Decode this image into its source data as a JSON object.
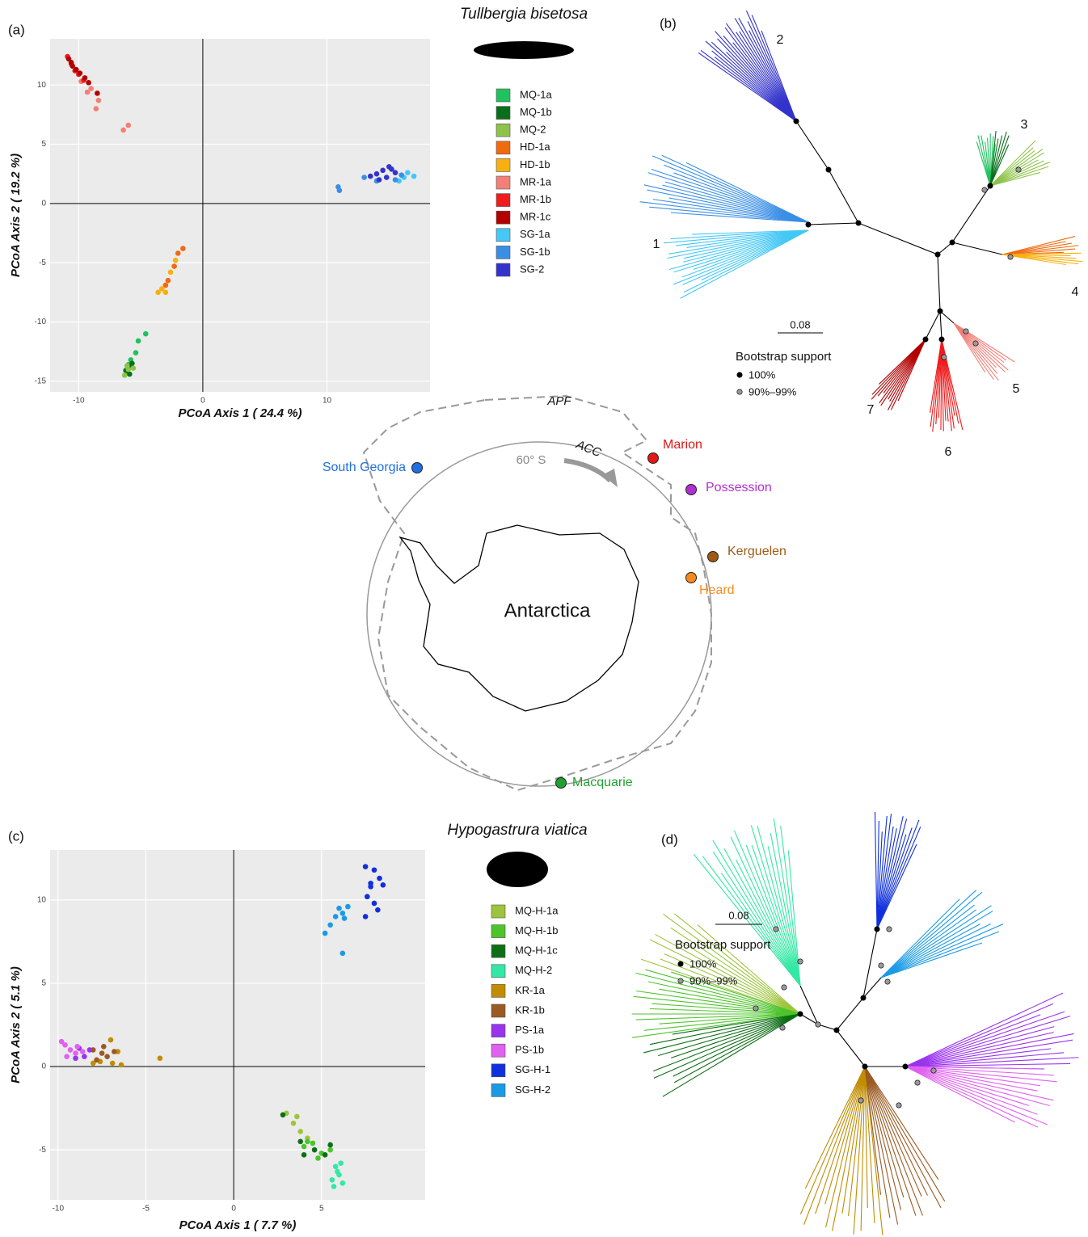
{
  "chart_data": [
    {
      "type": "scatter",
      "panel": "(a)",
      "species": "Tullbergia bisetosa",
      "xlabel": "PCoA Axis 1 ( 24.4 %)",
      "ylabel": "PCoA Axis 2 ( 19.2 %)",
      "xlim": [
        -12.3,
        18.3
      ],
      "ylim": [
        -15.9,
        13.9
      ],
      "xticks": [
        -10,
        0,
        10
      ],
      "yticks": [
        -15,
        -10,
        -5,
        0,
        5,
        10
      ],
      "grid": true,
      "series": [
        {
          "name": "MQ-1a",
          "color": "#1fc25f",
          "x": [
            -4.6,
            -5.2,
            -5.4,
            -5.8,
            -6.1,
            -6.0
          ],
          "y": [
            -11.0,
            -11.6,
            -12.6,
            -13.2,
            -14.2,
            -13.6
          ]
        },
        {
          "name": "MQ-1b",
          "color": "#0a6e1a",
          "x": [
            -5.8,
            -6.2,
            -5.7,
            -5.9
          ],
          "y": [
            -13.8,
            -14.1,
            -13.5,
            -14.4
          ]
        },
        {
          "name": "MQ-2",
          "color": "#8dc34a",
          "x": [
            -6.0,
            -6.3,
            -5.6,
            -6.1
          ],
          "y": [
            -14.0,
            -14.5,
            -13.9,
            -13.7
          ]
        },
        {
          "name": "HD-1a",
          "color": "#f06a10",
          "x": [
            -1.6,
            -2.0,
            -2.3,
            -2.8,
            -3.0
          ],
          "y": [
            -3.8,
            -4.2,
            -5.3,
            -6.5,
            -6.9
          ]
        },
        {
          "name": "HD-1b",
          "color": "#f8b010",
          "x": [
            -2.2,
            -3.3,
            -3.6,
            -3.0,
            -2.6
          ],
          "y": [
            -4.8,
            -7.2,
            -7.5,
            -7.5,
            -5.8
          ]
        },
        {
          "name": "MR-1a",
          "color": "#f47f77",
          "x": [
            -9.8,
            -9.0,
            -8.4,
            -6.4,
            -6.0,
            -8.6,
            -9.3
          ],
          "y": [
            10.3,
            9.7,
            8.7,
            6.2,
            6.6,
            8.0,
            9.4
          ]
        },
        {
          "name": "MR-1b",
          "color": "#ee1c1c",
          "x": [
            -10.9,
            -10.6,
            -10.3,
            -10.0,
            -9.6
          ],
          "y": [
            12.4,
            11.8,
            11.2,
            10.9,
            10.4
          ]
        },
        {
          "name": "MR-1c",
          "color": "#b20000",
          "x": [
            -10.8,
            -10.5,
            -10.2,
            -9.9,
            -9.5,
            -8.5,
            -9.2,
            -10.6
          ],
          "y": [
            12.2,
            11.6,
            11.3,
            11.0,
            10.6,
            9.3,
            10.2,
            11.9
          ]
        },
        {
          "name": "SG-1a",
          "color": "#44c8f5",
          "x": [
            16.5,
            17.0,
            15.8,
            16.2
          ],
          "y": [
            2.6,
            2.3,
            1.9,
            2.2
          ]
        },
        {
          "name": "SG-1b",
          "color": "#3a8ee6",
          "x": [
            13.0,
            14.0,
            15.5,
            16.0,
            10.9,
            11.0
          ],
          "y": [
            2.2,
            1.9,
            2.0,
            2.4,
            1.4,
            1.1
          ]
        },
        {
          "name": "SG-2",
          "color": "#3333cc",
          "x": [
            14.0,
            14.5,
            15.0,
            15.5,
            14.8,
            13.5,
            15.2,
            14.2
          ],
          "y": [
            2.5,
            2.8,
            3.1,
            2.6,
            2.2,
            2.3,
            2.9,
            2.0
          ]
        }
      ]
    },
    {
      "type": "scatter",
      "panel": "(c)",
      "species": "Hypogastrura viatica",
      "xlabel": "PCoA Axis 1 ( 7.7 %)",
      "ylabel": "PCoA Axis 2 ( 5.1 %)",
      "xlim": [
        -10.45,
        10.9
      ],
      "ylim": [
        -8.0,
        13.0
      ],
      "xticks": [
        -10,
        -5,
        0,
        5
      ],
      "yticks": [
        -5,
        0,
        5,
        10
      ],
      "grid": true,
      "series": [
        {
          "name": "MQ-H-1a",
          "color": "#9dc43c",
          "x": [
            3.0,
            3.4,
            3.8,
            4.2,
            3.6
          ],
          "y": [
            -2.8,
            -3.4,
            -3.9,
            -4.3,
            -3.0
          ]
        },
        {
          "name": "MQ-H-1b",
          "color": "#4cc42a",
          "x": [
            4.0,
            4.5,
            5.0,
            4.8,
            4.2,
            5.5
          ],
          "y": [
            -4.8,
            -4.6,
            -5.2,
            -5.5,
            -4.5,
            -5.0
          ]
        },
        {
          "name": "MQ-H-1c",
          "color": "#0d6e16",
          "x": [
            2.8,
            3.8,
            4.6,
            5.2,
            5.5,
            4.0
          ],
          "y": [
            -2.9,
            -4.5,
            -5.0,
            -5.3,
            -4.7,
            -5.3
          ]
        },
        {
          "name": "MQ-H-2",
          "color": "#33e8a4",
          "x": [
            5.8,
            6.0,
            5.6,
            6.2,
            5.9,
            5.7,
            6.1
          ],
          "y": [
            -6.0,
            -6.5,
            -6.8,
            -7.0,
            -6.3,
            -7.2,
            -5.8
          ]
        },
        {
          "name": "KR-1a",
          "color": "#c08c00",
          "x": [
            -7.0,
            -6.6,
            -6.4,
            -6.9,
            -7.6,
            -4.2,
            -8.0
          ],
          "y": [
            1.6,
            0.9,
            0.1,
            0.2,
            0.3,
            0.5,
            0.2
          ]
        },
        {
          "name": "KR-1b",
          "color": "#9a5a22",
          "x": [
            -8.0,
            -7.5,
            -7.2,
            -7.8,
            -6.8,
            -7.4
          ],
          "y": [
            1.0,
            0.8,
            0.6,
            0.4,
            0.9,
            1.2
          ]
        },
        {
          "name": "PS-1a",
          "color": "#9933ee",
          "x": [
            -9.0,
            -8.5,
            -8.2,
            -8.8
          ],
          "y": [
            0.5,
            0.6,
            1.0,
            1.1
          ]
        },
        {
          "name": "PS-1b",
          "color": "#e060f0",
          "x": [
            -9.6,
            -9.3,
            -9.0,
            -9.5,
            -8.9,
            -8.6,
            -9.8
          ],
          "y": [
            1.3,
            1.0,
            0.8,
            0.6,
            1.2,
            0.9,
            1.5
          ]
        },
        {
          "name": "SG-H-1",
          "color": "#1030dd",
          "x": [
            7.5,
            8.0,
            8.3,
            7.8,
            8.5,
            7.6,
            8.0,
            7.5,
            8.2,
            7.8
          ],
          "y": [
            12.0,
            11.8,
            11.3,
            10.8,
            10.9,
            10.2,
            9.8,
            9.0,
            9.4,
            11.0
          ]
        },
        {
          "name": "SG-H-2",
          "color": "#1a9ae6",
          "x": [
            6.0,
            6.5,
            6.2,
            5.8,
            6.3,
            5.5,
            5.2,
            6.2
          ],
          "y": [
            9.5,
            9.6,
            9.2,
            9.0,
            8.9,
            8.5,
            8.0,
            6.8
          ]
        }
      ]
    }
  ],
  "trees": [
    {
      "panel": "(b)",
      "clades": [
        "1",
        "2",
        "3",
        "4",
        "5",
        "6",
        "7"
      ],
      "scale": "0.08",
      "support_title": "Bootstrap support",
      "support_levels": [
        "100%",
        "90%–99%"
      ]
    },
    {
      "panel": "(d)",
      "scale": "0.08",
      "support_title": "Bootstrap support",
      "support_levels": [
        "100%",
        "90%–99%"
      ]
    }
  ],
  "map": {
    "center": "Antarctica",
    "front": "APF",
    "current": "ACC",
    "latitude": "60° S",
    "sites": [
      {
        "name": "South Georgia",
        "color": "#1f6fe0"
      },
      {
        "name": "Marion",
        "color": "#e01818"
      },
      {
        "name": "Possession",
        "color": "#b030d0"
      },
      {
        "name": "Kerguelen",
        "color": "#a05a14"
      },
      {
        "name": "Heard",
        "color": "#f58a1f"
      },
      {
        "name": "Macquarie",
        "color": "#20a030"
      }
    ]
  }
}
